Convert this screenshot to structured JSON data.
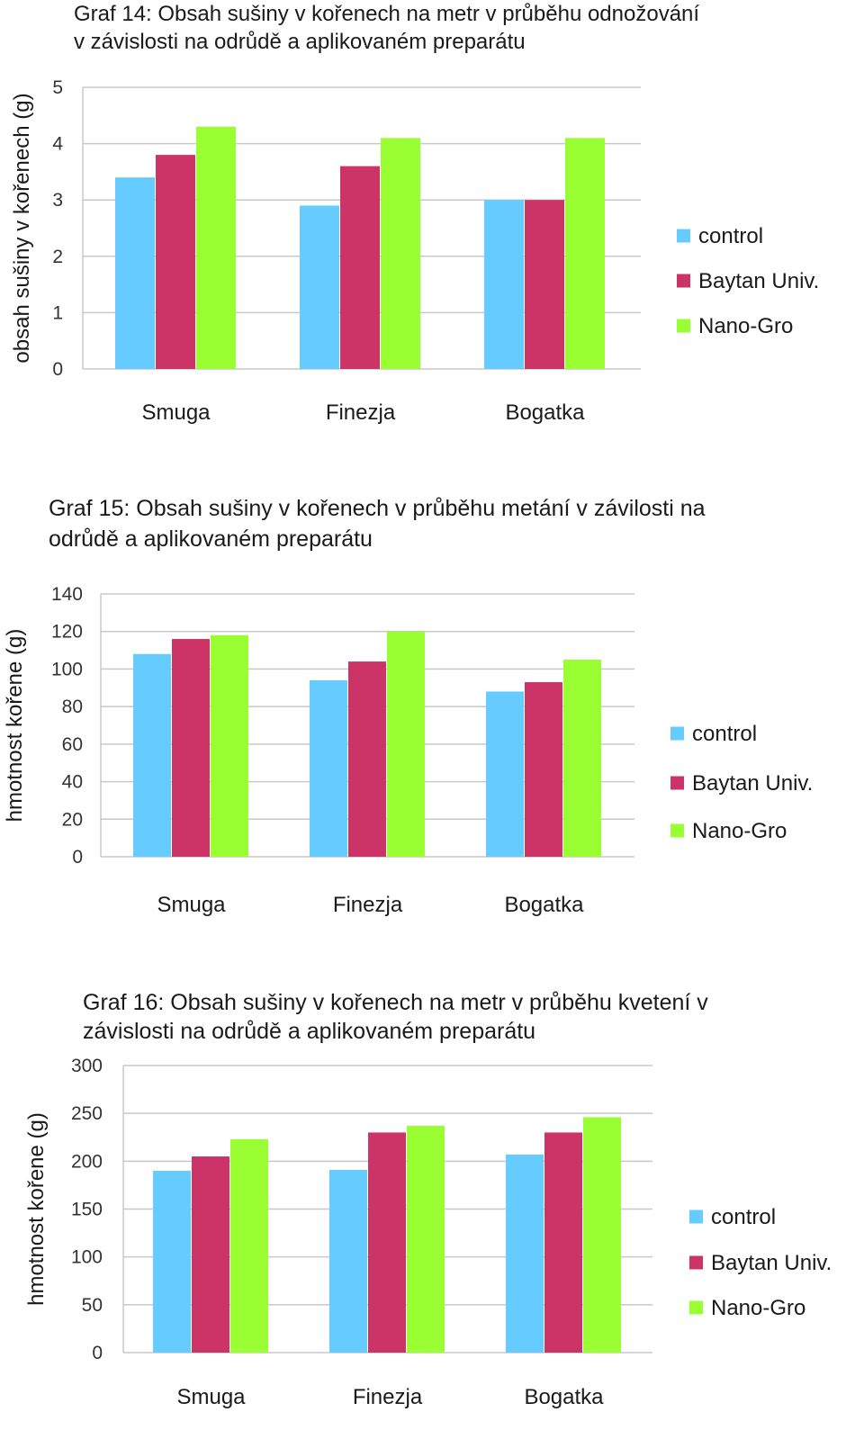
{
  "colors": {
    "control": "#66ccff",
    "baytan": "#cc3366",
    "nanogro": "#99ff33",
    "grid": "#c8c8c8"
  },
  "chart_data": [
    {
      "type": "bar",
      "title_lines": [
        "Graf 14: Obsah sušiny v kořenech na metr v průběhu odnožování",
        "v závislosti na odrůdě a aplikovaném preparátu"
      ],
      "ylabel": "obsah sušiny v kořenech (g)",
      "xlabel": "",
      "ylim": [
        0,
        5
      ],
      "yticks": [
        "0",
        "1",
        "2",
        "3",
        "4",
        "5"
      ],
      "categories": [
        "Smuga",
        "Finezja",
        "Bogatka"
      ],
      "series": [
        {
          "name": "control",
          "values": [
            3.4,
            2.9,
            3.0
          ]
        },
        {
          "name": "Baytan Univ.",
          "values": [
            3.8,
            3.6,
            3.0
          ]
        },
        {
          "name": "Nano-Gro",
          "values": [
            4.3,
            4.1,
            4.1
          ]
        }
      ],
      "grid": true,
      "legend": "right"
    },
    {
      "type": "bar",
      "title_lines": [
        "Graf 15: Obsah sušiny v kořenech v průběhu metání v závilosti na",
        "odrůdě a aplikovaném preparátu"
      ],
      "ylabel": "hmotnost kořene (g)",
      "xlabel": "",
      "ylim": [
        0,
        140
      ],
      "yticks": [
        "0",
        "20",
        "40",
        "60",
        "80",
        "100",
        "120",
        "140"
      ],
      "categories": [
        "Smuga",
        "Finezja",
        "Bogatka"
      ],
      "series": [
        {
          "name": "control",
          "values": [
            108,
            94,
            88
          ]
        },
        {
          "name": "Baytan Univ.",
          "values": [
            116,
            104,
            93
          ]
        },
        {
          "name": "Nano-Gro",
          "values": [
            118,
            120,
            105
          ]
        }
      ],
      "grid": true,
      "legend": "right"
    },
    {
      "type": "bar",
      "title_lines": [
        "Graf 16: Obsah sušiny v kořenech na metr v průběhu kvetení v",
        "závislosti na odrůdě a aplikovaném preparátu"
      ],
      "ylabel": "hmotnost kořene (g)",
      "xlabel": "",
      "ylim": [
        0,
        300
      ],
      "yticks": [
        "0",
        "50",
        "100",
        "150",
        "200",
        "250",
        "300"
      ],
      "categories": [
        "Smuga",
        "Finezja",
        "Bogatka"
      ],
      "series": [
        {
          "name": "control",
          "values": [
            190,
            191,
            207
          ]
        },
        {
          "name": "Baytan Univ.",
          "values": [
            205,
            230,
            230
          ]
        },
        {
          "name": "Nano-Gro",
          "values": [
            223,
            237,
            246
          ]
        }
      ],
      "grid": true,
      "legend": "right"
    }
  ]
}
